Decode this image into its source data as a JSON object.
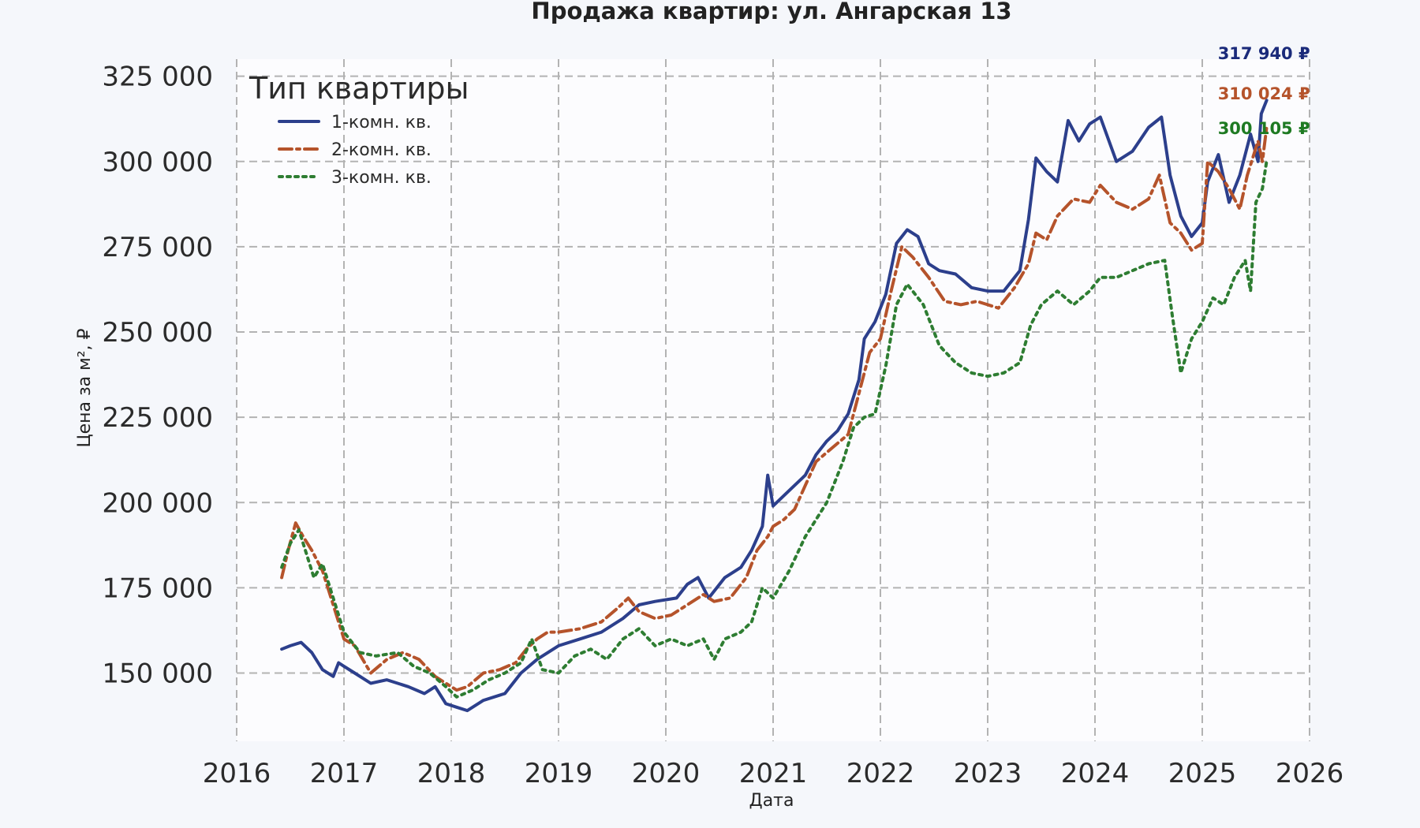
{
  "chart_data": {
    "type": "line",
    "title": "Продажа квартир: ул. Ангарская 13",
    "xlabel": "Дата",
    "ylabel": "Цена за м², ₽",
    "xlim": [
      2016,
      2026
    ],
    "ylim": [
      130000,
      330000
    ],
    "x_ticks": [
      "2016",
      "2017",
      "2018",
      "2019",
      "2020",
      "2021",
      "2022",
      "2023",
      "2024",
      "2025",
      "2026"
    ],
    "y_ticks": [
      150000,
      175000,
      200000,
      225000,
      250000,
      275000,
      300000,
      325000
    ],
    "y_tick_labels": [
      "150 000",
      "175 000",
      "200 000",
      "225 000",
      "250 000",
      "275 000",
      "300 000",
      "325 000"
    ],
    "grid": true,
    "legend": {
      "title": "Тип квартиры",
      "placement": "top-left"
    },
    "series": [
      {
        "name": "1-комн. кв.",
        "color": "#2c3f8c",
        "style": "solid",
        "end_label": "317 940 ₽",
        "label_color": "#1a2a7a",
        "x": [
          2016.42,
          2016.5,
          2016.6,
          2016.7,
          2016.8,
          2016.9,
          2016.95,
          2017.0,
          2017.1,
          2017.25,
          2017.4,
          2017.6,
          2017.75,
          2017.85,
          2017.95,
          2018.05,
          2018.15,
          2018.3,
          2018.5,
          2018.65,
          2018.8,
          2019.0,
          2019.2,
          2019.4,
          2019.6,
          2019.75,
          2019.9,
          2020.1,
          2020.2,
          2020.3,
          2020.4,
          2020.55,
          2020.7,
          2020.8,
          2020.9,
          2020.95,
          2021.0,
          2021.1,
          2021.2,
          2021.3,
          2021.4,
          2021.5,
          2021.6,
          2021.7,
          2021.8,
          2021.85,
          2021.95,
          2022.05,
          2022.15,
          2022.25,
          2022.35,
          2022.45,
          2022.55,
          2022.7,
          2022.85,
          2023.0,
          2023.15,
          2023.3,
          2023.38,
          2023.45,
          2023.55,
          2023.65,
          2023.75,
          2023.85,
          2023.95,
          2024.05,
          2024.2,
          2024.35,
          2024.5,
          2024.62,
          2024.7,
          2024.8,
          2024.9,
          2025.0,
          2025.05,
          2025.15,
          2025.25,
          2025.35,
          2025.45,
          2025.52,
          2025.55,
          2025.6
        ],
        "y": [
          157000,
          158000,
          159000,
          156000,
          151000,
          149000,
          153000,
          152000,
          150000,
          147000,
          148000,
          146000,
          144000,
          146000,
          141000,
          140000,
          139000,
          142000,
          144000,
          150000,
          154000,
          158000,
          160000,
          162000,
          166000,
          170000,
          171000,
          172000,
          176000,
          178000,
          172000,
          178000,
          181000,
          186000,
          193000,
          208000,
          199000,
          202000,
          205000,
          208000,
          214000,
          218000,
          221000,
          226000,
          236000,
          248000,
          253000,
          261000,
          276000,
          280000,
          278000,
          270000,
          268000,
          267000,
          263000,
          262000,
          262000,
          268000,
          283000,
          301000,
          297000,
          294000,
          312000,
          306000,
          311000,
          313000,
          300000,
          303000,
          310000,
          313000,
          296000,
          284000,
          278000,
          282000,
          294000,
          302000,
          288000,
          296000,
          308000,
          300000,
          314000,
          317940
        ]
      },
      {
        "name": "2-комн. кв.",
        "color": "#b5532b",
        "style": "dashdot",
        "end_label": "310 024 ₽",
        "label_color": "#b5532b",
        "x": [
          2016.42,
          2016.48,
          2016.55,
          2016.62,
          2016.7,
          2016.8,
          2016.9,
          2017.0,
          2017.1,
          2017.25,
          2017.4,
          2017.55,
          2017.7,
          2017.85,
          2017.95,
          2018.05,
          2018.15,
          2018.3,
          2018.45,
          2018.6,
          2018.7,
          2018.8,
          2018.9,
          2019.0,
          2019.2,
          2019.4,
          2019.55,
          2019.65,
          2019.75,
          2019.9,
          2020.05,
          2020.2,
          2020.35,
          2020.45,
          2020.6,
          2020.75,
          2020.85,
          2020.95,
          2021.0,
          2021.1,
          2021.2,
          2021.3,
          2021.4,
          2021.55,
          2021.7,
          2021.8,
          2021.9,
          2022.0,
          2022.1,
          2022.2,
          2022.3,
          2022.45,
          2022.6,
          2022.75,
          2022.9,
          2023.0,
          2023.1,
          2023.25,
          2023.38,
          2023.45,
          2023.55,
          2023.65,
          2023.8,
          2023.95,
          2024.05,
          2024.2,
          2024.35,
          2024.5,
          2024.6,
          2024.7,
          2024.8,
          2024.9,
          2025.0,
          2025.05,
          2025.15,
          2025.25,
          2025.35,
          2025.42,
          2025.48,
          2025.52,
          2025.56,
          2025.6
        ],
        "y": [
          178000,
          186000,
          194000,
          190000,
          186000,
          180000,
          170000,
          160000,
          158000,
          150000,
          154000,
          156000,
          154000,
          149000,
          147000,
          145000,
          146000,
          150000,
          151000,
          153000,
          157000,
          160000,
          162000,
          162000,
          163000,
          165000,
          169000,
          172000,
          168000,
          166000,
          167000,
          170000,
          173000,
          171000,
          172000,
          178000,
          186000,
          190000,
          193000,
          195000,
          198000,
          205000,
          212000,
          216000,
          220000,
          232000,
          244000,
          248000,
          262000,
          275000,
          272000,
          266000,
          259000,
          258000,
          259000,
          258000,
          257000,
          263000,
          270000,
          279000,
          277000,
          284000,
          289000,
          288000,
          293000,
          288000,
          286000,
          289000,
          296000,
          282000,
          279000,
          274000,
          276000,
          300000,
          297000,
          292000,
          286000,
          296000,
          302000,
          306000,
          300000,
          310024
        ]
      },
      {
        "name": "3-комн. кв.",
        "color": "#2e7d32",
        "style": "dotted",
        "end_label": "300 105 ₽",
        "label_color": "#1e7a22",
        "x": [
          2016.42,
          2016.5,
          2016.58,
          2016.65,
          2016.72,
          2016.8,
          2016.9,
          2017.0,
          2017.15,
          2017.3,
          2017.5,
          2017.65,
          2017.8,
          2017.95,
          2018.05,
          2018.2,
          2018.35,
          2018.5,
          2018.65,
          2018.75,
          2018.85,
          2019.0,
          2019.15,
          2019.3,
          2019.45,
          2019.6,
          2019.75,
          2019.9,
          2020.05,
          2020.2,
          2020.35,
          2020.45,
          2020.55,
          2020.7,
          2020.8,
          2020.9,
          2021.0,
          2021.15,
          2021.3,
          2021.5,
          2021.65,
          2021.75,
          2021.85,
          2021.95,
          2022.05,
          2022.15,
          2022.25,
          2022.4,
          2022.55,
          2022.7,
          2022.85,
          2023.0,
          2023.15,
          2023.3,
          2023.4,
          2023.5,
          2023.65,
          2023.8,
          2023.95,
          2024.05,
          2024.2,
          2024.35,
          2024.5,
          2024.65,
          2024.72,
          2024.8,
          2024.9,
          2025.0,
          2025.1,
          2025.2,
          2025.3,
          2025.4,
          2025.45,
          2025.5,
          2025.56,
          2025.6
        ],
        "y": [
          181000,
          188000,
          192000,
          185000,
          178000,
          182000,
          172000,
          162000,
          156000,
          155000,
          156000,
          152000,
          150000,
          146000,
          143000,
          145000,
          148000,
          150000,
          153000,
          160000,
          151000,
          150000,
          155000,
          157000,
          154000,
          160000,
          163000,
          158000,
          160000,
          158000,
          160000,
          154000,
          160000,
          162000,
          165000,
          175000,
          172000,
          180000,
          190000,
          200000,
          212000,
          222000,
          225000,
          226000,
          240000,
          258000,
          264000,
          258000,
          246000,
          241000,
          238000,
          237000,
          238000,
          241000,
          252000,
          258000,
          262000,
          258000,
          262000,
          266000,
          266000,
          268000,
          270000,
          271000,
          255000,
          238000,
          248000,
          253000,
          260000,
          258000,
          266000,
          271000,
          262000,
          288000,
          292000,
          300105
        ]
      }
    ]
  }
}
